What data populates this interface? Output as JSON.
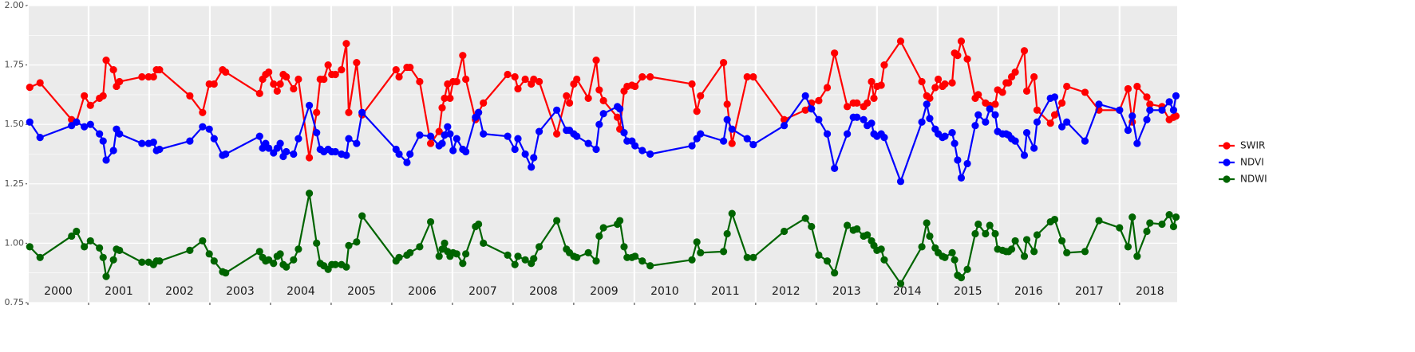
{
  "chart_data": {
    "type": "line",
    "x": [
      2000.03,
      2000.2,
      2000.72,
      2000.8,
      2000.93,
      2001.03,
      2001.18,
      2001.24,
      2001.29,
      2001.41,
      2001.46,
      2001.51,
      2001.88,
      2001.99,
      2002.07,
      2002.12,
      2002.17,
      2002.67,
      2002.88,
      2002.99,
      2003.07,
      2003.21,
      2003.26,
      2003.82,
      2003.87,
      2003.92,
      2003.97,
      2004.05,
      2004.11,
      2004.16,
      2004.21,
      2004.26,
      2004.38,
      2004.46,
      2004.64,
      2004.76,
      2004.82,
      2004.88,
      2004.95,
      2005.01,
      2005.07,
      2005.17,
      2005.25,
      2005.29,
      2005.42,
      2005.51,
      2006.07,
      2006.12,
      2006.25,
      2006.3,
      2006.46,
      2006.64,
      2006.78,
      2006.83,
      2006.87,
      2006.92,
      2006.96,
      2007.01,
      2007.07,
      2007.17,
      2007.22,
      2007.38,
      2007.43,
      2007.51,
      2007.91,
      2008.03,
      2008.08,
      2008.2,
      2008.3,
      2008.34,
      2008.43,
      2008.72,
      2008.88,
      2008.93,
      2009.0,
      2009.05,
      2009.24,
      2009.37,
      2009.42,
      2009.49,
      2009.72,
      2009.76,
      2009.83,
      2009.88,
      2009.96,
      2010.01,
      2010.13,
      2010.26,
      2010.95,
      2011.03,
      2011.09,
      2011.47,
      2011.53,
      2011.61,
      2011.86,
      2011.96,
      2012.47,
      2012.82,
      2012.92,
      2013.04,
      2013.18,
      2013.3,
      2013.51,
      2013.61,
      2013.67,
      2013.78,
      2013.84,
      2013.91,
      2013.95,
      2014.0,
      2014.07,
      2014.12,
      2014.39,
      2014.74,
      2014.82,
      2014.87,
      2014.96,
      2015.01,
      2015.08,
      2015.12,
      2015.24,
      2015.28,
      2015.33,
      2015.39,
      2015.49,
      2015.62,
      2015.67,
      2015.79,
      2015.86,
      2015.95,
      2015.99,
      2016.07,
      2016.13,
      2016.17,
      2016.22,
      2016.28,
      2016.43,
      2016.47,
      2016.59,
      2016.64,
      2016.86,
      2016.93,
      2017.05,
      2017.13,
      2017.43,
      2017.66,
      2018.0,
      2018.14,
      2018.21,
      2018.29,
      2018.45,
      2018.5,
      2018.7,
      2018.82,
      2018.89,
      2018.93
    ],
    "series": [
      {
        "name": "SWIR",
        "color": "#ff0000",
        "values": [
          1.656,
          1.675,
          1.52,
          1.51,
          1.62,
          1.58,
          1.61,
          1.62,
          1.77,
          1.73,
          1.66,
          1.68,
          1.7,
          1.7,
          1.7,
          1.73,
          1.73,
          1.62,
          1.55,
          1.67,
          1.67,
          1.73,
          1.72,
          1.63,
          1.69,
          1.71,
          1.72,
          1.67,
          1.64,
          1.67,
          1.71,
          1.7,
          1.65,
          1.69,
          1.36,
          1.55,
          1.69,
          1.69,
          1.75,
          1.71,
          1.71,
          1.73,
          1.84,
          1.55,
          1.76,
          1.54,
          1.73,
          1.7,
          1.74,
          1.74,
          1.68,
          1.42,
          1.47,
          1.57,
          1.61,
          1.67,
          1.61,
          1.68,
          1.68,
          1.79,
          1.69,
          1.52,
          1.55,
          1.59,
          1.71,
          1.7,
          1.65,
          1.69,
          1.67,
          1.69,
          1.68,
          1.46,
          1.62,
          1.59,
          1.67,
          1.69,
          1.61,
          1.77,
          1.645,
          1.6,
          1.53,
          1.48,
          1.64,
          1.66,
          1.665,
          1.66,
          1.7,
          1.7,
          1.67,
          1.555,
          1.62,
          1.76,
          1.585,
          1.42,
          1.7,
          1.7,
          1.52,
          1.56,
          1.59,
          1.6,
          1.655,
          1.8,
          1.575,
          1.59,
          1.59,
          1.575,
          1.59,
          1.68,
          1.61,
          1.66,
          1.665,
          1.75,
          1.85,
          1.68,
          1.62,
          1.61,
          1.655,
          1.69,
          1.66,
          1.67,
          1.675,
          1.8,
          1.79,
          1.85,
          1.775,
          1.61,
          1.625,
          1.59,
          1.58,
          1.585,
          1.645,
          1.635,
          1.675,
          1.675,
          1.7,
          1.72,
          1.81,
          1.64,
          1.7,
          1.56,
          1.505,
          1.54,
          1.59,
          1.66,
          1.635,
          1.56,
          1.56,
          1.65,
          1.51,
          1.66,
          1.615,
          1.585,
          1.575,
          1.52,
          1.53,
          1.535
        ]
      },
      {
        "name": "NDVI",
        "color": "#0000ff",
        "values": [
          1.51,
          1.445,
          1.495,
          1.51,
          1.49,
          1.5,
          1.46,
          1.43,
          1.35,
          1.39,
          1.48,
          1.46,
          1.42,
          1.42,
          1.425,
          1.39,
          1.395,
          1.43,
          1.49,
          1.48,
          1.44,
          1.37,
          1.375,
          1.45,
          1.4,
          1.42,
          1.4,
          1.38,
          1.4,
          1.42,
          1.365,
          1.385,
          1.375,
          1.44,
          1.58,
          1.465,
          1.395,
          1.385,
          1.395,
          1.385,
          1.385,
          1.375,
          1.37,
          1.44,
          1.42,
          1.55,
          1.395,
          1.375,
          1.34,
          1.375,
          1.455,
          1.45,
          1.41,
          1.42,
          1.455,
          1.49,
          1.46,
          1.39,
          1.44,
          1.395,
          1.385,
          1.53,
          1.55,
          1.46,
          1.45,
          1.395,
          1.44,
          1.375,
          1.32,
          1.36,
          1.47,
          1.56,
          1.475,
          1.475,
          1.46,
          1.45,
          1.42,
          1.395,
          1.5,
          1.545,
          1.575,
          1.565,
          1.465,
          1.43,
          1.43,
          1.41,
          1.39,
          1.375,
          1.41,
          1.44,
          1.46,
          1.43,
          1.52,
          1.48,
          1.44,
          1.415,
          1.495,
          1.62,
          1.565,
          1.52,
          1.46,
          1.315,
          1.46,
          1.53,
          1.53,
          1.52,
          1.495,
          1.505,
          1.46,
          1.45,
          1.46,
          1.445,
          1.26,
          1.51,
          1.585,
          1.525,
          1.48,
          1.46,
          1.445,
          1.45,
          1.465,
          1.42,
          1.35,
          1.275,
          1.335,
          1.495,
          1.54,
          1.51,
          1.565,
          1.54,
          1.47,
          1.46,
          1.46,
          1.455,
          1.44,
          1.43,
          1.37,
          1.465,
          1.4,
          1.51,
          1.61,
          1.615,
          1.49,
          1.51,
          1.43,
          1.585,
          1.56,
          1.475,
          1.535,
          1.42,
          1.52,
          1.56,
          1.56,
          1.595,
          1.56,
          1.62
        ]
      },
      {
        "name": "NDWI",
        "color": "#006400",
        "values": [
          0.985,
          0.94,
          1.03,
          1.05,
          0.985,
          1.01,
          0.98,
          0.94,
          0.86,
          0.93,
          0.975,
          0.97,
          0.92,
          0.92,
          0.91,
          0.925,
          0.925,
          0.97,
          1.01,
          0.955,
          0.925,
          0.88,
          0.875,
          0.965,
          0.94,
          0.925,
          0.93,
          0.915,
          0.945,
          0.955,
          0.91,
          0.9,
          0.93,
          0.975,
          1.21,
          1.0,
          0.915,
          0.905,
          0.89,
          0.91,
          0.91,
          0.91,
          0.9,
          0.99,
          1.005,
          1.115,
          0.925,
          0.94,
          0.95,
          0.96,
          0.985,
          1.09,
          0.945,
          0.975,
          1.0,
          0.965,
          0.945,
          0.96,
          0.955,
          0.915,
          0.955,
          1.07,
          1.08,
          1.0,
          0.95,
          0.91,
          0.945,
          0.93,
          0.915,
          0.935,
          0.985,
          1.095,
          0.975,
          0.96,
          0.945,
          0.94,
          0.96,
          0.925,
          1.03,
          1.065,
          1.08,
          1.095,
          0.985,
          0.94,
          0.94,
          0.945,
          0.925,
          0.905,
          0.93,
          1.005,
          0.96,
          0.965,
          1.04,
          1.125,
          0.94,
          0.94,
          1.05,
          1.105,
          1.07,
          0.95,
          0.925,
          0.875,
          1.075,
          1.055,
          1.06,
          1.03,
          1.035,
          1.01,
          0.99,
          0.97,
          0.975,
          0.93,
          0.83,
          0.985,
          1.085,
          1.03,
          0.98,
          0.96,
          0.945,
          0.94,
          0.96,
          0.93,
          0.865,
          0.855,
          0.89,
          1.04,
          1.08,
          1.04,
          1.075,
          1.04,
          0.975,
          0.97,
          0.965,
          0.965,
          0.975,
          1.01,
          0.945,
          1.015,
          0.965,
          1.035,
          1.09,
          1.1,
          1.01,
          0.96,
          0.965,
          1.095,
          1.065,
          0.985,
          1.11,
          0.945,
          1.05,
          1.085,
          1.08,
          1.12,
          1.07,
          1.11
        ]
      }
    ],
    "xlim": [
      2000.0,
      2018.95
    ],
    "ylim": [
      0.75,
      2.0
    ],
    "yticks": [
      {
        "value": 0.75,
        "label": "0.75"
      },
      {
        "value": 1.0,
        "label": "1.00"
      },
      {
        "value": 1.25,
        "label": "1.25"
      },
      {
        "value": 1.5,
        "label": "1.50"
      },
      {
        "value": 1.75,
        "label": "1.75"
      },
      {
        "value": 2.0,
        "label": "2.00"
      }
    ],
    "year_boundaries": [
      2000,
      2001,
      2002,
      2003,
      2004,
      2005,
      2006,
      2007,
      2008,
      2009,
      2010,
      2011,
      2012,
      2013,
      2014,
      2015,
      2016,
      2017,
      2018
    ],
    "year_labels": [
      {
        "value": 2000.5,
        "label": "2000"
      },
      {
        "value": 2001.5,
        "label": "2001"
      },
      {
        "value": 2002.5,
        "label": "2002"
      },
      {
        "value": 2003.5,
        "label": "2003"
      },
      {
        "value": 2004.5,
        "label": "2004"
      },
      {
        "value": 2005.5,
        "label": "2005"
      },
      {
        "value": 2006.5,
        "label": "2006"
      },
      {
        "value": 2007.5,
        "label": "2007"
      },
      {
        "value": 2008.5,
        "label": "2008"
      },
      {
        "value": 2009.5,
        "label": "2009"
      },
      {
        "value": 2010.5,
        "label": "2010"
      },
      {
        "value": 2011.5,
        "label": "2011"
      },
      {
        "value": 2012.5,
        "label": "2012"
      },
      {
        "value": 2013.5,
        "label": "2013"
      },
      {
        "value": 2014.5,
        "label": "2014"
      },
      {
        "value": 2015.5,
        "label": "2015"
      },
      {
        "value": 2016.5,
        "label": "2016"
      },
      {
        "value": 2017.5,
        "label": "2017"
      },
      {
        "value": 2018.5,
        "label": "2018"
      }
    ],
    "grid": true,
    "legend": "right"
  }
}
